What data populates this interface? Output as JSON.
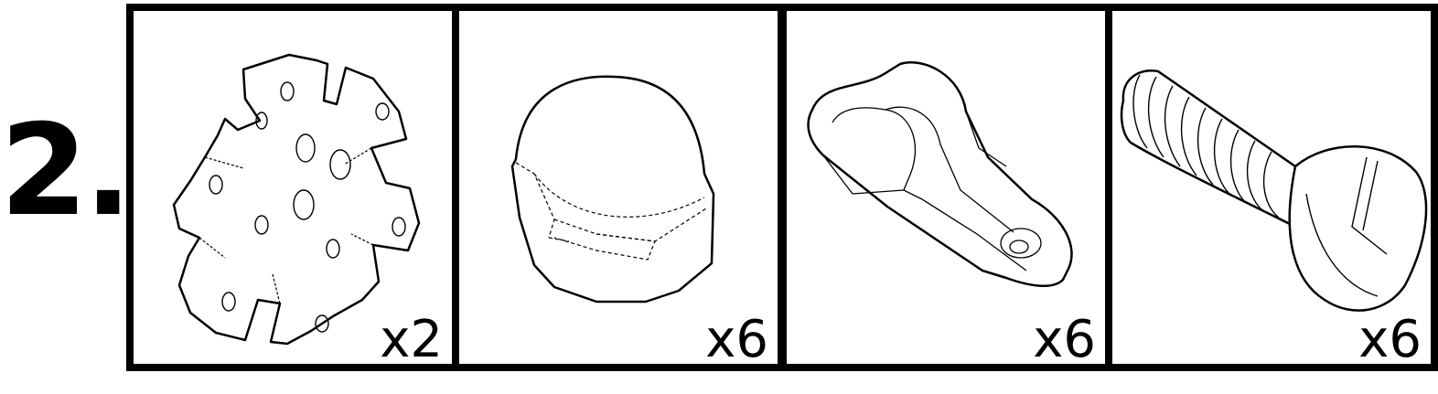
{
  "step": {
    "number": "2."
  },
  "parts": [
    {
      "icon": "star-washer-icon",
      "quantity": "x2"
    },
    {
      "icon": "cap-nut-icon",
      "quantity": "x6"
    },
    {
      "icon": "cable-clip-icon",
      "quantity": "x6"
    },
    {
      "icon": "slotted-screw-icon",
      "quantity": "x6"
    }
  ],
  "colors": {
    "ink": "#000000",
    "paper": "#ffffff"
  }
}
